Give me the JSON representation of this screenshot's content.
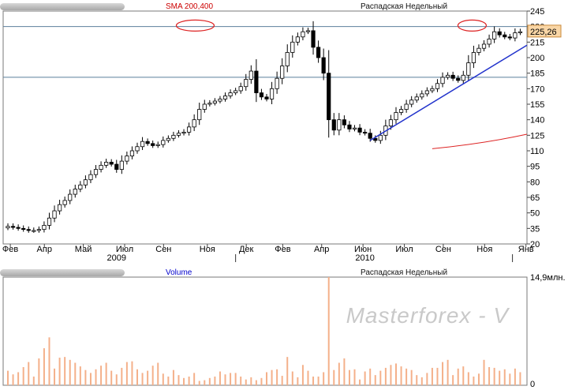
{
  "price_panel": {
    "sma_label": "SMA 200,400",
    "symbol_label": "Распадская Недельный",
    "last_price": "225,26",
    "y_ticks": [
      "245",
      "230",
      "215",
      "200",
      "185",
      "170",
      "155",
      "140",
      "125",
      "110",
      "95",
      "80",
      "65",
      "50",
      "35",
      "20"
    ],
    "month_labels": [
      "Фев",
      "Апр",
      "Май",
      "Июл",
      "Сен",
      "Ноя",
      "Дек",
      "Фев",
      "Апр",
      "Июн",
      "Июл",
      "Сен",
      "Ноя",
      "Янв"
    ],
    "year_labels": [
      "2009",
      "2010"
    ]
  },
  "volume_panel": {
    "title": "Volume",
    "symbol_label": "Распадская Недельный",
    "max_label": "14,9млн.",
    "zero_label": "0"
  },
  "watermark": "Masterforex - V",
  "colors": {
    "candle_up": "#ffffff",
    "candle_down": "#000000",
    "trend_line": "#2233cc",
    "sma_line": "#dd2222",
    "level_line": "#5b7f9b",
    "volume_bar": "#f4b08a",
    "last_price_bg": "#f9d6a6",
    "sma_label": "#cc0000",
    "volume_label": "#0000cc"
  },
  "chart_data": {
    "type": "candlestick",
    "y_range": [
      20,
      245
    ],
    "horizontal_levels": [
      230,
      181
    ],
    "x_labels": [
      "Фев",
      "Апр",
      "Май",
      "Июл",
      "Сен",
      "Ноя",
      "Дек",
      "Фев",
      "Апр",
      "Июн",
      "Июл",
      "Сен",
      "Ноя",
      "Янв"
    ],
    "candles_close": [
      37,
      36,
      35,
      34,
      33,
      33,
      34,
      38,
      45,
      52,
      58,
      62,
      68,
      73,
      77,
      82,
      87,
      92,
      96,
      99,
      97,
      92,
      100,
      105,
      110,
      114,
      119,
      117,
      115,
      116,
      120,
      122,
      125,
      127,
      128,
      133,
      140,
      150,
      155,
      156,
      158,
      160,
      163,
      166,
      168,
      172,
      179,
      187,
      166,
      162,
      160,
      170,
      180,
      192,
      205,
      215,
      220,
      225,
      226,
      210,
      200,
      185,
      140,
      130,
      140,
      135,
      131,
      132,
      128,
      127,
      122,
      120,
      125,
      134,
      140,
      147,
      150,
      155,
      159,
      162,
      165,
      168,
      170,
      175,
      181,
      183,
      180,
      178,
      183,
      195,
      205,
      209,
      213,
      218,
      225,
      222,
      220,
      219,
      224,
      225
    ],
    "volume_millions": [
      2,
      1.5,
      1.8,
      2.5,
      3.2,
      1.2,
      3.7,
      5.1,
      6.6,
      2.3,
      3.8,
      3.9,
      3.5,
      3.1,
      2.6,
      2.1,
      1.7,
      2.2,
      2.7,
      3.1,
      2.0,
      1.5,
      2.4,
      3.2,
      3.3,
      2.2,
      1.7,
      2.0,
      2.7,
      3.1,
      1.6,
      1.2,
      2.1,
      1.4,
      1.0,
      1.2,
      1.7,
      0.6,
      0.7,
      1.0,
      1.2,
      1.9,
      1.5,
      1.7,
      1.7,
      1.2,
      0.8,
      1.1,
      0.7,
      1.0,
      1.8,
      2.1,
      2.2,
      1.3,
      3.9,
      1.9,
      1.1,
      2.8,
      2.0,
      1.2,
      1.2,
      1.8,
      14.9,
      2.1,
      3.1,
      3.7,
      2.1,
      2.2,
      0.8,
      1.9,
      2.3,
      1.4,
      2.0,
      2.4,
      2.8,
      3.0,
      2.6,
      2.3,
      2.1,
      1.4,
      1.1,
      1.7,
      2.4,
      2.4,
      3.2,
      3.5,
      1.4,
      2.3,
      2.6,
      1.8,
      1.2,
      1.6,
      3.5,
      2.5,
      2.4,
      2.0,
      2.2,
      1.6,
      2.3,
      1.8
    ],
    "volume_range": [
      0,
      14.9
    ],
    "annotations": [
      "resistance circles at ~230",
      "blue uptrend line",
      "red SMA line"
    ]
  }
}
